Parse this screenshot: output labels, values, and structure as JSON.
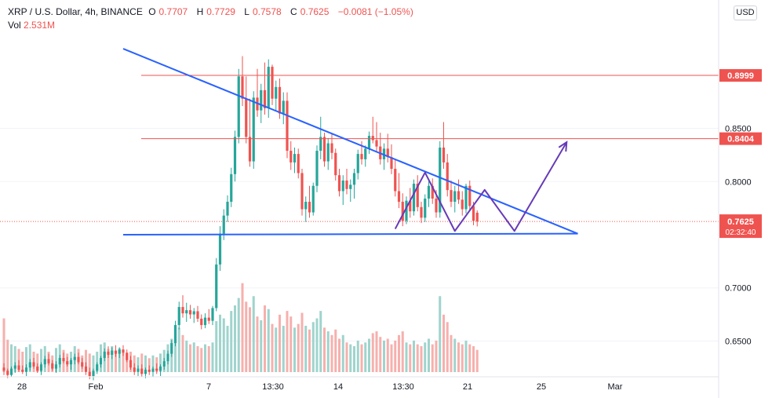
{
  "header": {
    "symbol": "XRP / U.S. Dollar, 4h, BINANCE",
    "o_label": "O",
    "o_value": "0.7707",
    "h_label": "H",
    "h_value": "0.7729",
    "l_label": "L",
    "l_value": "0.7578",
    "c_label": "C",
    "c_value": "0.7625",
    "change": "−0.0081 (−1.05%)",
    "vol_label": "Vol",
    "vol_value": "2.531M"
  },
  "currency_button": "USD",
  "colors": {
    "up": "#26a69a",
    "down": "#ef5350",
    "vol_up": "#9fd4cd",
    "vol_down": "#f6b0ad",
    "trendline": "#2962ff",
    "projection": "#673ab7",
    "level": "#ef5350",
    "grid": "#f0f3fa",
    "axis_text": "#131722"
  },
  "chart_data": {
    "type": "candlestick",
    "y_range": [
      0.62,
      0.945
    ],
    "y_ticks": [
      "0.6500",
      "0.7000",
      "0.8000",
      "0.8500"
    ],
    "x_ticks": [
      "28",
      "Feb",
      "7",
      "13:30",
      "14",
      "13:30",
      "21",
      "25",
      "Mar"
    ],
    "last_price": {
      "value": 0.7625,
      "label": "0.7625",
      "countdown": "02:32:40"
    },
    "levels": [
      {
        "value": 0.8999,
        "label": "0.8999"
      },
      {
        "value": 0.8404,
        "label": "0.8404"
      }
    ],
    "candles": [
      [
        0.625,
        0.629,
        0.618,
        0.622
      ],
      [
        0.622,
        0.624,
        0.615,
        0.618
      ],
      [
        0.618,
        0.626,
        0.616,
        0.624
      ],
      [
        0.624,
        0.63,
        0.62,
        0.627
      ],
      [
        0.627,
        0.632,
        0.621,
        0.623
      ],
      [
        0.623,
        0.627,
        0.619,
        0.621
      ],
      [
        0.621,
        0.628,
        0.617,
        0.625
      ],
      [
        0.625,
        0.633,
        0.622,
        0.63
      ],
      [
        0.63,
        0.634,
        0.624,
        0.626
      ],
      [
        0.626,
        0.629,
        0.62,
        0.622
      ],
      [
        0.622,
        0.63,
        0.618,
        0.628
      ],
      [
        0.628,
        0.636,
        0.625,
        0.633
      ],
      [
        0.633,
        0.638,
        0.627,
        0.629
      ],
      [
        0.629,
        0.632,
        0.622,
        0.624
      ],
      [
        0.624,
        0.631,
        0.62,
        0.628
      ],
      [
        0.628,
        0.637,
        0.625,
        0.634
      ],
      [
        0.634,
        0.639,
        0.629,
        0.631
      ],
      [
        0.631,
        0.635,
        0.626,
        0.628
      ],
      [
        0.628,
        0.634,
        0.623,
        0.632
      ],
      [
        0.632,
        0.638,
        0.628,
        0.635
      ],
      [
        0.635,
        0.639,
        0.628,
        0.63
      ],
      [
        0.63,
        0.634,
        0.624,
        0.626
      ],
      [
        0.626,
        0.63,
        0.618,
        0.621
      ],
      [
        0.621,
        0.625,
        0.614,
        0.617
      ],
      [
        0.617,
        0.624,
        0.613,
        0.622
      ],
      [
        0.622,
        0.63,
        0.619,
        0.628
      ],
      [
        0.628,
        0.636,
        0.625,
        0.634
      ],
      [
        0.634,
        0.643,
        0.631,
        0.64
      ],
      [
        0.64,
        0.645,
        0.634,
        0.637
      ],
      [
        0.637,
        0.644,
        0.633,
        0.641
      ],
      [
        0.641,
        0.646,
        0.635,
        0.638
      ],
      [
        0.638,
        0.644,
        0.634,
        0.642
      ],
      [
        0.642,
        0.646,
        0.636,
        0.639
      ],
      [
        0.639,
        0.642,
        0.63,
        0.632
      ],
      [
        0.632,
        0.636,
        0.623,
        0.625
      ],
      [
        0.625,
        0.629,
        0.618,
        0.621
      ],
      [
        0.621,
        0.627,
        0.617,
        0.624
      ],
      [
        0.624,
        0.628,
        0.616,
        0.619
      ],
      [
        0.619,
        0.625,
        0.615,
        0.623
      ],
      [
        0.623,
        0.627,
        0.618,
        0.621
      ],
      [
        0.621,
        0.626,
        0.616,
        0.624
      ],
      [
        0.624,
        0.629,
        0.619,
        0.622
      ],
      [
        0.622,
        0.628,
        0.617,
        0.626
      ],
      [
        0.626,
        0.634,
        0.623,
        0.631
      ],
      [
        0.631,
        0.641,
        0.628,
        0.638
      ],
      [
        0.638,
        0.651,
        0.635,
        0.648
      ],
      [
        0.648,
        0.669,
        0.645,
        0.665
      ],
      [
        0.665,
        0.687,
        0.661,
        0.682
      ],
      [
        0.682,
        0.693,
        0.672,
        0.676
      ],
      [
        0.676,
        0.686,
        0.668,
        0.679
      ],
      [
        0.679,
        0.684,
        0.671,
        0.675
      ],
      [
        0.675,
        0.681,
        0.667,
        0.678
      ],
      [
        0.678,
        0.683,
        0.668,
        0.671
      ],
      [
        0.671,
        0.675,
        0.661,
        0.665
      ],
      [
        0.665,
        0.676,
        0.662,
        0.672
      ],
      [
        0.672,
        0.68,
        0.666,
        0.669
      ],
      [
        0.669,
        0.683,
        0.665,
        0.681
      ],
      [
        0.681,
        0.728,
        0.678,
        0.722
      ],
      [
        0.722,
        0.758,
        0.716,
        0.751
      ],
      [
        0.751,
        0.774,
        0.745,
        0.768
      ],
      [
        0.768,
        0.787,
        0.762,
        0.781
      ],
      [
        0.781,
        0.813,
        0.776,
        0.807
      ],
      [
        0.807,
        0.848,
        0.8,
        0.842
      ],
      [
        0.842,
        0.906,
        0.836,
        0.899
      ],
      [
        0.899,
        0.918,
        0.871,
        0.878
      ],
      [
        0.878,
        0.899,
        0.836,
        0.842
      ],
      [
        0.842,
        0.878,
        0.814,
        0.819
      ],
      [
        0.819,
        0.885,
        0.812,
        0.879
      ],
      [
        0.879,
        0.906,
        0.861,
        0.867
      ],
      [
        0.867,
        0.892,
        0.855,
        0.886
      ],
      [
        0.886,
        0.912,
        0.863,
        0.869
      ],
      [
        0.869,
        0.915,
        0.86,
        0.908
      ],
      [
        0.908,
        0.91,
        0.872,
        0.878
      ],
      [
        0.878,
        0.895,
        0.866,
        0.889
      ],
      [
        0.889,
        0.897,
        0.859,
        0.864
      ],
      [
        0.864,
        0.884,
        0.854,
        0.876
      ],
      [
        0.876,
        0.884,
        0.822,
        0.829
      ],
      [
        0.829,
        0.838,
        0.811,
        0.818
      ],
      [
        0.818,
        0.832,
        0.808,
        0.826
      ],
      [
        0.826,
        0.831,
        0.803,
        0.808
      ],
      [
        0.808,
        0.812,
        0.768,
        0.774
      ],
      [
        0.774,
        0.786,
        0.762,
        0.781
      ],
      [
        0.781,
        0.796,
        0.766,
        0.771
      ],
      [
        0.771,
        0.799,
        0.768,
        0.796
      ],
      [
        0.796,
        0.834,
        0.79,
        0.829
      ],
      [
        0.829,
        0.861,
        0.821,
        0.842
      ],
      [
        0.842,
        0.846,
        0.814,
        0.819
      ],
      [
        0.819,
        0.841,
        0.811,
        0.836
      ],
      [
        0.836,
        0.845,
        0.821,
        0.827
      ],
      [
        0.827,
        0.831,
        0.801,
        0.806
      ],
      [
        0.806,
        0.812,
        0.786,
        0.791
      ],
      [
        0.791,
        0.806,
        0.778,
        0.801
      ],
      [
        0.801,
        0.812,
        0.788,
        0.793
      ],
      [
        0.793,
        0.802,
        0.781,
        0.797
      ],
      [
        0.797,
        0.812,
        0.784,
        0.808
      ],
      [
        0.808,
        0.83,
        0.802,
        0.826
      ],
      [
        0.826,
        0.838,
        0.816,
        0.821
      ],
      [
        0.821,
        0.834,
        0.814,
        0.831
      ],
      [
        0.831,
        0.847,
        0.826,
        0.843
      ],
      [
        0.843,
        0.861,
        0.836,
        0.839
      ],
      [
        0.839,
        0.856,
        0.828,
        0.833
      ],
      [
        0.833,
        0.846,
        0.816,
        0.821
      ],
      [
        0.821,
        0.836,
        0.811,
        0.831
      ],
      [
        0.831,
        0.845,
        0.818,
        0.823
      ],
      [
        0.823,
        0.835,
        0.807,
        0.812
      ],
      [
        0.812,
        0.821,
        0.786,
        0.791
      ],
      [
        0.791,
        0.808,
        0.775,
        0.781
      ],
      [
        0.781,
        0.789,
        0.758,
        0.763
      ],
      [
        0.763,
        0.786,
        0.76,
        0.782
      ],
      [
        0.782,
        0.794,
        0.766,
        0.772
      ],
      [
        0.772,
        0.802,
        0.768,
        0.798
      ],
      [
        0.798,
        0.806,
        0.772,
        0.776
      ],
      [
        0.776,
        0.781,
        0.761,
        0.766
      ],
      [
        0.766,
        0.788,
        0.762,
        0.784
      ],
      [
        0.784,
        0.801,
        0.776,
        0.796
      ],
      [
        0.796,
        0.803,
        0.779,
        0.784
      ],
      [
        0.784,
        0.792,
        0.766,
        0.771
      ],
      [
        0.771,
        0.838,
        0.766,
        0.832
      ],
      [
        0.832,
        0.856,
        0.812,
        0.818
      ],
      [
        0.818,
        0.826,
        0.786,
        0.792
      ],
      [
        0.792,
        0.801,
        0.776,
        0.781
      ],
      [
        0.781,
        0.796,
        0.771,
        0.791
      ],
      [
        0.791,
        0.802,
        0.779,
        0.783
      ],
      [
        0.783,
        0.791,
        0.768,
        0.774
      ],
      [
        0.774,
        0.798,
        0.77,
        0.796
      ],
      [
        0.796,
        0.801,
        0.772,
        0.777
      ],
      [
        0.777,
        0.781,
        0.759,
        0.763
      ],
      [
        0.7707,
        0.7729,
        0.7578,
        0.7625
      ]
    ],
    "volumes": [
      0.58,
      0.35,
      0.3,
      0.28,
      0.25,
      0.22,
      0.27,
      0.3,
      0.22,
      0.2,
      0.25,
      0.28,
      0.22,
      0.18,
      0.26,
      0.3,
      0.24,
      0.2,
      0.22,
      0.28,
      0.25,
      0.18,
      0.24,
      0.2,
      0.18,
      0.22,
      0.3,
      0.32,
      0.25,
      0.28,
      0.22,
      0.26,
      0.24,
      0.2,
      0.22,
      0.18,
      0.16,
      0.2,
      0.18,
      0.15,
      0.18,
      0.16,
      0.2,
      0.24,
      0.3,
      0.36,
      0.42,
      0.48,
      0.4,
      0.34,
      0.3,
      0.32,
      0.28,
      0.26,
      0.3,
      0.28,
      0.32,
      0.55,
      0.62,
      0.58,
      0.5,
      0.66,
      0.72,
      0.8,
      0.96,
      0.76,
      0.7,
      0.82,
      0.6,
      0.56,
      0.72,
      0.68,
      0.52,
      0.48,
      0.62,
      0.5,
      0.66,
      0.6,
      0.48,
      0.52,
      0.64,
      0.5,
      0.46,
      0.54,
      0.58,
      0.66,
      0.48,
      0.44,
      0.4,
      0.46,
      0.36,
      0.4,
      0.32,
      0.3,
      0.28,
      0.34,
      0.3,
      0.32,
      0.36,
      0.42,
      0.44,
      0.38,
      0.34,
      0.36,
      0.3,
      0.34,
      0.4,
      0.44,
      0.32,
      0.3,
      0.34,
      0.3,
      0.28,
      0.32,
      0.36,
      0.3,
      0.34,
      0.82,
      0.62,
      0.54,
      0.4,
      0.36,
      0.32,
      0.3,
      0.34,
      0.3,
      0.28,
      0.24
    ],
    "triangle": {
      "upper": [
        {
          "t": 32,
          "p": 0.925
        },
        {
          "t": 154,
          "p": 0.751
        }
      ],
      "lower": [
        {
          "t": 32,
          "p": 0.75
        },
        {
          "t": 154,
          "p": 0.751
        }
      ]
    },
    "projection": [
      {
        "t": 105,
        "p": 0.7555
      },
      {
        "t": 113,
        "p": 0.8085
      },
      {
        "t": 121,
        "p": 0.7535
      },
      {
        "t": 129,
        "p": 0.7922
      },
      {
        "t": 137,
        "p": 0.7535
      },
      {
        "t": 151,
        "p": 0.8371
      }
    ]
  }
}
